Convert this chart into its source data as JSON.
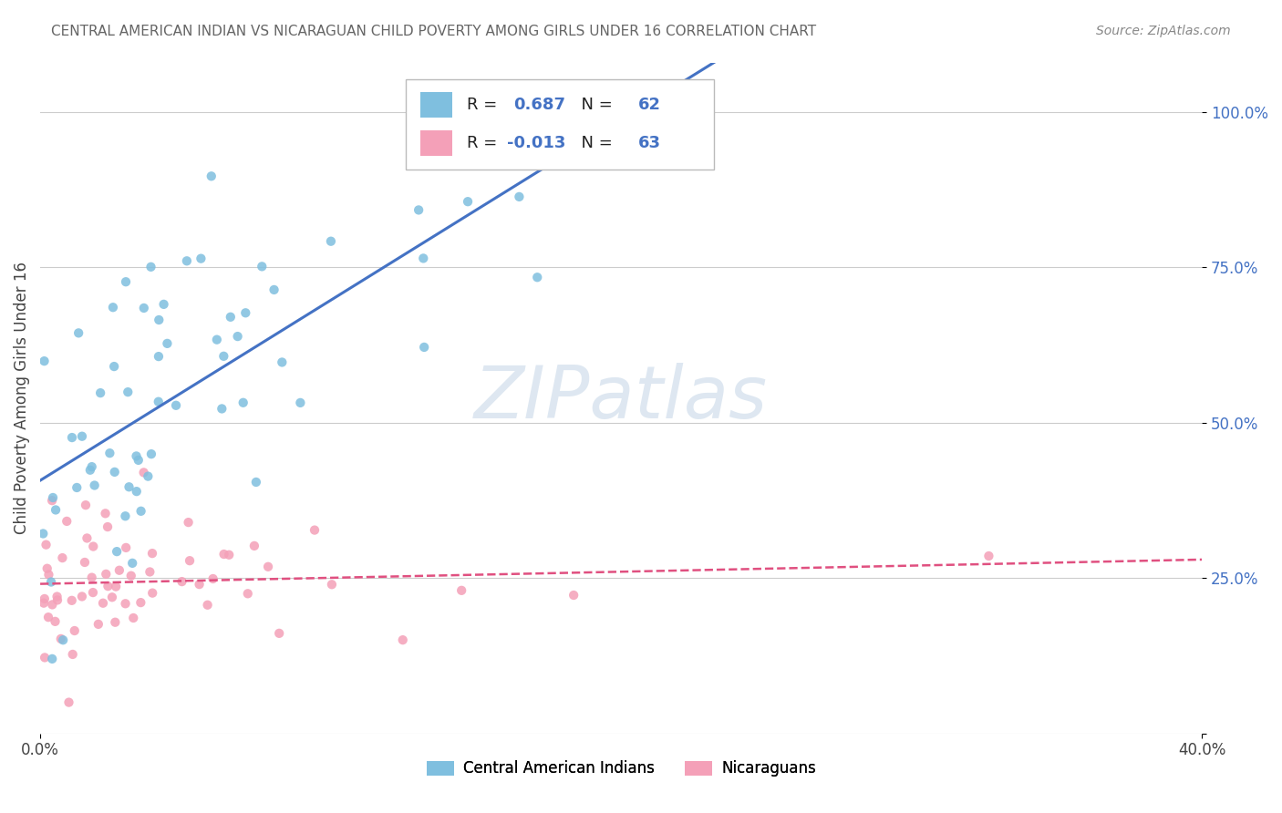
{
  "title": "CENTRAL AMERICAN INDIAN VS NICARAGUAN CHILD POVERTY AMONG GIRLS UNDER 16 CORRELATION CHART",
  "source": "Source: ZipAtlas.com",
  "ylabel": "Child Poverty Among Girls Under 16",
  "series_labels": [
    "Central American Indians",
    "Nicaraguans"
  ],
  "blue_color": "#7fbfdf",
  "pink_color": "#f4a0b8",
  "blue_line_color": "#4472c4",
  "pink_line_color": "#e05080",
  "watermark_text": "ZIPatlas",
  "watermark_color": "#c8d8e8",
  "R_blue": 0.687,
  "N_blue": 62,
  "R_pink": -0.013,
  "N_pink": 63,
  "xlim": [
    0,
    0.4
  ],
  "ylim": [
    0,
    1.08
  ],
  "x_ticks": [
    0.0,
    0.4
  ],
  "x_tick_labels": [
    "0.0%",
    "40.0%"
  ],
  "y_ticks": [
    0.0,
    0.25,
    0.5,
    0.75,
    1.0
  ],
  "y_tick_labels": [
    "",
    "25.0%",
    "50.0%",
    "75.0%",
    "100.0%"
  ],
  "title_fontsize": 11,
  "source_fontsize": 10,
  "tick_fontsize": 12,
  "legend_fontsize": 13
}
